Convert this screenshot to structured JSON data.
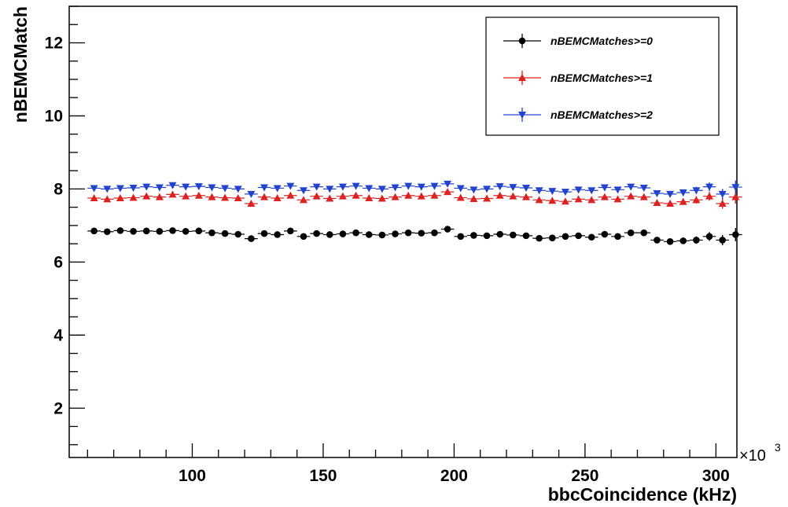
{
  "chart_data": {
    "type": "scatter",
    "title": "",
    "xlabel": "bbcCoincidence (kHz)",
    "ylabel": "nBEMCMatch",
    "x_multiplier_label": "×10",
    "x_multiplier_exp": "3",
    "xlim": [
      53,
      308
    ],
    "ylim": [
      0.65,
      13.0
    ],
    "x_ticks": [
      100,
      150,
      200,
      250,
      300
    ],
    "x_tick_labels": [
      "100",
      "150",
      "200",
      "250",
      "300"
    ],
    "y_ticks": [
      2,
      4,
      6,
      8,
      10,
      12
    ],
    "y_tick_labels": [
      "2",
      "4",
      "6",
      "8",
      "10",
      "12"
    ],
    "grid": false,
    "legend_position": "top-right",
    "x": [
      62.5,
      67.5,
      72.5,
      77.5,
      82.5,
      87.5,
      92.5,
      97.5,
      102.5,
      107.5,
      112.5,
      117.5,
      122.5,
      127.5,
      132.5,
      137.5,
      142.5,
      147.5,
      152.5,
      157.5,
      162.5,
      167.5,
      172.5,
      177.5,
      182.5,
      187.5,
      192.5,
      197.5,
      202.5,
      207.5,
      212.5,
      217.5,
      222.5,
      227.5,
      232.5,
      237.5,
      242.5,
      247.5,
      252.5,
      257.5,
      262.5,
      267.5,
      272.5,
      277.5,
      282.5,
      287.5,
      292.5,
      297.5,
      302.5,
      307.5
    ],
    "series": [
      {
        "name": "nBEMCMatches>=0",
        "color": "#000000",
        "marker": "circle",
        "y": [
          6.85,
          6.83,
          6.86,
          6.84,
          6.85,
          6.84,
          6.86,
          6.84,
          6.85,
          6.8,
          6.78,
          6.76,
          6.64,
          6.78,
          6.75,
          6.85,
          6.7,
          6.78,
          6.75,
          6.77,
          6.8,
          6.75,
          6.74,
          6.77,
          6.8,
          6.79,
          6.8,
          6.9,
          6.7,
          6.73,
          6.72,
          6.76,
          6.74,
          6.72,
          6.65,
          6.66,
          6.7,
          6.72,
          6.68,
          6.76,
          6.7,
          6.8,
          6.8,
          6.6,
          6.56,
          6.58,
          6.6,
          6.7,
          6.6,
          6.75
        ],
        "err": [
          0.06,
          0.06,
          0.06,
          0.06,
          0.06,
          0.06,
          0.06,
          0.06,
          0.06,
          0.06,
          0.06,
          0.06,
          0.06,
          0.06,
          0.06,
          0.06,
          0.06,
          0.06,
          0.06,
          0.06,
          0.06,
          0.06,
          0.06,
          0.06,
          0.06,
          0.06,
          0.06,
          0.06,
          0.06,
          0.06,
          0.06,
          0.06,
          0.06,
          0.06,
          0.06,
          0.06,
          0.06,
          0.06,
          0.06,
          0.06,
          0.07,
          0.07,
          0.07,
          0.08,
          0.08,
          0.09,
          0.1,
          0.12,
          0.14,
          0.18
        ]
      },
      {
        "name": "nBEMCMatches>=1",
        "color": "#dd2222",
        "marker": "triangle-up",
        "y": [
          7.75,
          7.72,
          7.75,
          7.76,
          7.8,
          7.78,
          7.85,
          7.8,
          7.82,
          7.78,
          7.76,
          7.75,
          7.6,
          7.78,
          7.75,
          7.82,
          7.7,
          7.8,
          7.74,
          7.8,
          7.82,
          7.75,
          7.74,
          7.78,
          7.82,
          7.8,
          7.82,
          7.92,
          7.76,
          7.73,
          7.74,
          7.82,
          7.8,
          7.78,
          7.7,
          7.68,
          7.66,
          7.72,
          7.7,
          7.78,
          7.72,
          7.8,
          7.78,
          7.62,
          7.6,
          7.65,
          7.7,
          7.8,
          7.6,
          7.78
        ],
        "err": [
          0.06,
          0.06,
          0.06,
          0.06,
          0.06,
          0.06,
          0.06,
          0.06,
          0.06,
          0.06,
          0.06,
          0.06,
          0.06,
          0.06,
          0.06,
          0.06,
          0.06,
          0.06,
          0.06,
          0.06,
          0.06,
          0.06,
          0.06,
          0.06,
          0.06,
          0.06,
          0.06,
          0.06,
          0.06,
          0.06,
          0.06,
          0.06,
          0.06,
          0.06,
          0.06,
          0.06,
          0.06,
          0.06,
          0.06,
          0.06,
          0.07,
          0.07,
          0.07,
          0.08,
          0.08,
          0.09,
          0.1,
          0.12,
          0.14,
          0.18
        ]
      },
      {
        "name": "nBEMCMatches>=2",
        "color": "#2244cc",
        "marker": "triangle-down",
        "y": [
          8.02,
          8.0,
          8.02,
          8.03,
          8.06,
          8.04,
          8.1,
          8.06,
          8.07,
          8.04,
          8.02,
          8.0,
          7.86,
          8.04,
          8.02,
          8.08,
          7.96,
          8.06,
          8.0,
          8.06,
          8.08,
          8.02,
          8.0,
          8.04,
          8.08,
          8.06,
          8.08,
          8.14,
          8.02,
          7.98,
          8.0,
          8.07,
          8.05,
          8.03,
          7.96,
          7.94,
          7.92,
          7.98,
          7.96,
          8.04,
          7.98,
          8.06,
          8.03,
          7.88,
          7.86,
          7.9,
          7.96,
          8.06,
          7.86,
          8.05
        ],
        "err": [
          0.06,
          0.06,
          0.06,
          0.06,
          0.06,
          0.06,
          0.06,
          0.06,
          0.06,
          0.06,
          0.06,
          0.06,
          0.06,
          0.06,
          0.06,
          0.06,
          0.06,
          0.06,
          0.06,
          0.06,
          0.06,
          0.06,
          0.06,
          0.06,
          0.06,
          0.06,
          0.06,
          0.06,
          0.06,
          0.06,
          0.06,
          0.06,
          0.06,
          0.06,
          0.06,
          0.06,
          0.06,
          0.06,
          0.06,
          0.06,
          0.07,
          0.07,
          0.07,
          0.08,
          0.08,
          0.09,
          0.1,
          0.12,
          0.14,
          0.18
        ]
      }
    ]
  }
}
